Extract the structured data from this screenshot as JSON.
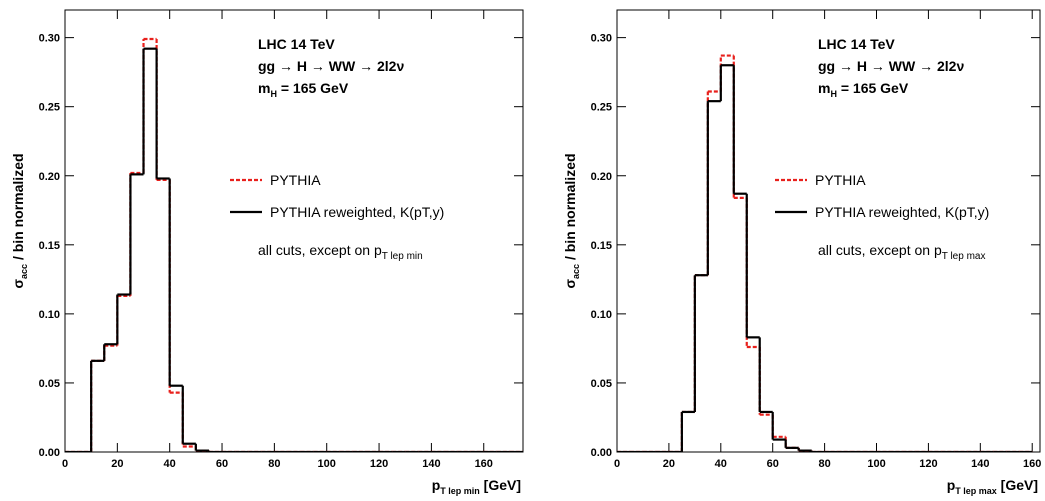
{
  "chart_data": [
    {
      "type": "histogram",
      "y_label": {
        "text": "σ",
        "sub": "acc",
        "tail": " / bin normalized"
      },
      "x_label": {
        "text": "p",
        "sub": "T lep min",
        "tail": " [GeV]"
      },
      "annotations": [
        {
          "text": "LHC 14 TeV"
        },
        {
          "text": "gg → H → WW → 2l2ν"
        },
        {
          "text": "m",
          "sub": "H",
          "tail": " = 165 GeV"
        }
      ],
      "note": {
        "text": "all cuts, except on p",
        "sub": "T lep min"
      },
      "bins": [
        0,
        5,
        10,
        15,
        20,
        25,
        30,
        35,
        40,
        45,
        50,
        55,
        60,
        65,
        70,
        75,
        80,
        85,
        90,
        95,
        100,
        105,
        110,
        115,
        120,
        125,
        130,
        135,
        140,
        145,
        150,
        155,
        160,
        165,
        170,
        175
      ],
      "series": [
        {
          "name": "PYTHIA",
          "color": "#e8201c",
          "style": "dashed",
          "values": [
            0,
            0,
            0.066,
            0.077,
            0.113,
            0.202,
            0.299,
            0.197,
            0.043,
            0.004,
            0.001,
            0,
            0,
            0,
            0,
            0,
            0,
            0,
            0,
            0,
            0,
            0,
            0,
            0,
            0,
            0,
            0,
            0,
            0,
            0,
            0,
            0,
            0,
            0,
            0
          ]
        },
        {
          "name": "PYTHIA reweighted, K(pT,y)",
          "color": "#000000",
          "style": "solid",
          "values": [
            0,
            0,
            0.066,
            0.078,
            0.114,
            0.201,
            0.292,
            0.198,
            0.048,
            0.006,
            0.001,
            0,
            0,
            0,
            0,
            0,
            0,
            0,
            0,
            0,
            0,
            0,
            0,
            0,
            0,
            0,
            0,
            0,
            0,
            0,
            0,
            0,
            0,
            0,
            0
          ]
        }
      ],
      "xlim": [
        0,
        175
      ],
      "ylim": [
        0,
        0.32
      ],
      "xticks": [
        0,
        20,
        40,
        60,
        80,
        100,
        120,
        140,
        160
      ],
      "yticks": [
        {
          "value": 0,
          "label": "0.00"
        },
        {
          "value": 0.05,
          "label": "0.05"
        },
        {
          "value": 0.1,
          "label": "0.10"
        },
        {
          "value": 0.15,
          "label": "0.15"
        },
        {
          "value": 0.2,
          "label": "0.20"
        },
        {
          "value": 0.25,
          "label": "0.25"
        },
        {
          "value": 0.3,
          "label": "0.30"
        }
      ]
    },
    {
      "type": "histogram",
      "y_label": {
        "text": "σ",
        "sub": "acc",
        "tail": " / bin normalized"
      },
      "x_label": {
        "text": "p",
        "sub": "T lep max",
        "tail": " [GeV]"
      },
      "annotations": [
        {
          "text": "LHC 14 TeV"
        },
        {
          "text": "gg → H → WW → 2l2ν"
        },
        {
          "text": "m",
          "sub": "H",
          "tail": " = 165 GeV"
        }
      ],
      "note": {
        "text": "all cuts, except on p",
        "sub": "T lep max"
      },
      "bins": [
        0,
        5,
        10,
        15,
        20,
        25,
        30,
        35,
        40,
        45,
        50,
        55,
        60,
        65,
        70,
        75,
        80,
        85,
        90,
        95,
        100,
        105,
        110,
        115,
        120,
        125,
        130,
        135,
        140,
        145,
        150,
        155,
        160
      ],
      "series": [
        {
          "name": "PYTHIA",
          "color": "#e8201c",
          "style": "dashed",
          "values": [
            0,
            0,
            0,
            0,
            0,
            0.029,
            0.128,
            0.261,
            0.287,
            0.184,
            0.076,
            0.027,
            0.011,
            0.003,
            0.001,
            0,
            0,
            0,
            0,
            0,
            0,
            0,
            0,
            0,
            0,
            0,
            0,
            0,
            0,
            0,
            0,
            0
          ]
        },
        {
          "name": "PYTHIA reweighted, K(pT,y)",
          "color": "#000000",
          "style": "solid",
          "values": [
            0,
            0,
            0,
            0,
            0,
            0.029,
            0.128,
            0.254,
            0.28,
            0.187,
            0.083,
            0.029,
            0.009,
            0.003,
            0.001,
            0,
            0,
            0,
            0,
            0,
            0,
            0,
            0,
            0,
            0,
            0,
            0,
            0,
            0,
            0,
            0,
            0
          ]
        }
      ],
      "xlim": [
        0,
        163
      ],
      "ylim": [
        0,
        0.32
      ],
      "xticks": [
        0,
        20,
        40,
        60,
        80,
        100,
        120,
        140,
        160
      ],
      "yticks": [
        {
          "value": 0,
          "label": "0.00"
        },
        {
          "value": 0.05,
          "label": "0.05"
        },
        {
          "value": 0.1,
          "label": "0.10"
        },
        {
          "value": 0.15,
          "label": "0.15"
        },
        {
          "value": 0.2,
          "label": "0.20"
        },
        {
          "value": 0.25,
          "label": "0.25"
        },
        {
          "value": 0.3,
          "label": "0.30"
        }
      ]
    }
  ]
}
